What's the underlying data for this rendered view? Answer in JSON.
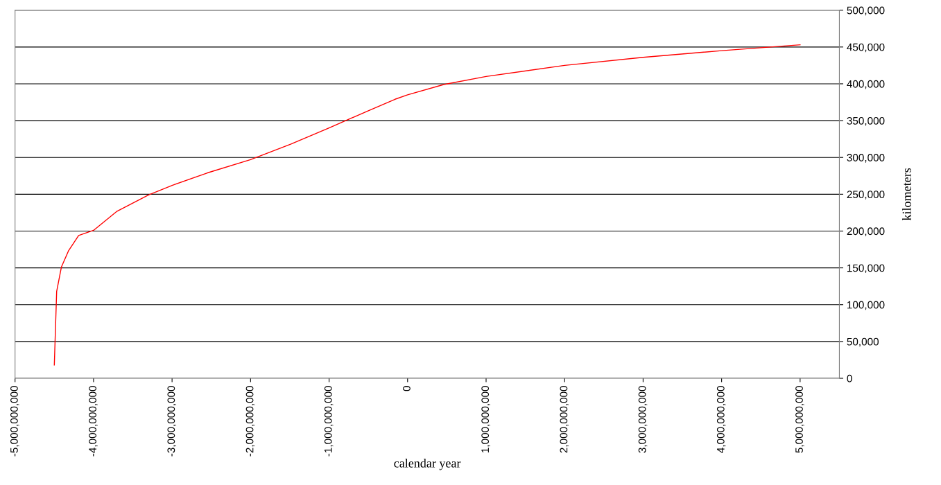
{
  "chart_data": {
    "type": "line",
    "xlabel": "calendar year",
    "ylabel": "kilometers",
    "x": [
      -4500000000,
      -4470000000,
      -4410000000,
      -4320000000,
      -4190000000,
      -4000000000,
      -3700000000,
      -3300000000,
      -3000000000,
      -2550000000,
      -2000000000,
      -1490000000,
      -1000000000,
      -510000000,
      -160000000,
      0,
      460000000,
      1000000000,
      2000000000,
      3000000000,
      4000000000,
      5000000000
    ],
    "series": [
      {
        "color": "#ff0000",
        "values": [
          18000,
          118000,
          151000,
          173000,
          194000,
          201000,
          227000,
          249000,
          262000,
          279000,
          297000,
          318000,
          340000,
          363000,
          379000,
          385000,
          399000,
          410000,
          425000,
          436000,
          445000,
          453000
        ]
      }
    ],
    "xlim": [
      -5000000000,
      5500000000
    ],
    "xticks": [
      {
        "value": -5000000000,
        "label": "-5,000,000,000"
      },
      {
        "value": -4000000000,
        "label": "-4,000,000,000"
      },
      {
        "value": -3000000000,
        "label": "-3,000,000,000"
      },
      {
        "value": -2000000000,
        "label": "-2,000,000,000"
      },
      {
        "value": -1000000000,
        "label": "-1,000,000,000"
      },
      0,
      {
        "value": 1000000000,
        "label": "1,000,000,000"
      },
      {
        "value": 2000000000,
        "label": "2,000,000,000"
      },
      {
        "value": 3000000000,
        "label": "3,000,000,000"
      },
      {
        "value": 4000000000,
        "label": "4,000,000,000"
      },
      {
        "value": 5000000000,
        "label": "5,000,000,000"
      }
    ],
    "ylim": [
      0,
      500000
    ],
    "yticks": [
      0,
      {
        "value": 50000,
        "label": "50,000"
      },
      {
        "value": 100000,
        "label": "100,000"
      },
      {
        "value": 150000,
        "label": "150,000"
      },
      {
        "value": 200000,
        "label": "200,000"
      },
      {
        "value": 250000,
        "label": "250,000"
      },
      {
        "value": 300000,
        "label": "300,000"
      },
      {
        "value": 350000,
        "label": "350,000"
      },
      {
        "value": 400000,
        "label": "400,000"
      },
      {
        "value": 450000,
        "label": "450,000"
      },
      {
        "value": 500000,
        "label": "500,000"
      }
    ],
    "grid": "y",
    "marker": "none",
    "line_style": "solid"
  }
}
